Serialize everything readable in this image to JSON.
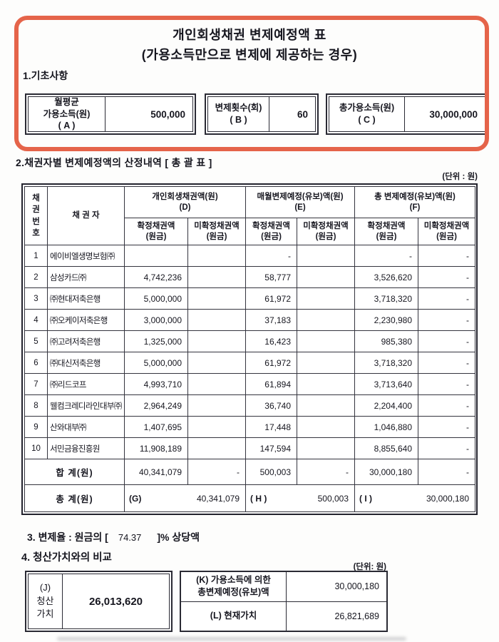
{
  "accent_color": "#e5644a",
  "title": "개인회생채권 변제예정액 표\n(가용소득만으로 변제에 제공하는 경우)",
  "section1": {
    "heading": "1.기초사항",
    "boxes": [
      {
        "label": "월평균\n가용소득(원)\n( A )",
        "value": "500,000"
      },
      {
        "label": "변제횟수(회)\n( B )",
        "value": "60"
      },
      {
        "label": "총가용소득(원)\n( C )",
        "value": "30,000,000"
      }
    ]
  },
  "section2": {
    "heading": "2.채권자별 변제예정액의 산정내역 [ 총 괄 표 ]",
    "unit_note": "(단위 : 원)",
    "table": {
      "corner_header": "채\n권\n번\n호",
      "creditor_header": "채 권 자",
      "group_headers": [
        "개인회생채권액(원)\n(D)",
        "매월변제예정(유보)액(원)\n(E)",
        "총 변제예정(유보)액(원)\n(F)"
      ],
      "sub_headers": [
        "확정채권액\n(원금)",
        "미확정채권액\n(원금)"
      ],
      "rows": [
        {
          "no": "1",
          "creditor": "에이비엘생명보험㈜",
          "cells": [
            "",
            "",
            "-",
            "",
            "-",
            "-"
          ]
        },
        {
          "no": "2",
          "creditor": "삼성카드㈜",
          "cells": [
            "4,742,236",
            "",
            "58,777",
            "",
            "3,526,620",
            "-"
          ]
        },
        {
          "no": "3",
          "creditor": "㈜현대저축은행",
          "cells": [
            "5,000,000",
            "",
            "61,972",
            "",
            "3,718,320",
            "-"
          ]
        },
        {
          "no": "4",
          "creditor": "㈜오케이저축은행",
          "cells": [
            "3,000,000",
            "",
            "37,183",
            "",
            "2,230,980",
            "-"
          ]
        },
        {
          "no": "5",
          "creditor": "㈜고려저축은행",
          "cells": [
            "1,325,000",
            "",
            "16,423",
            "",
            "985,380",
            "-"
          ]
        },
        {
          "no": "6",
          "creditor": "㈜대신저축은행",
          "cells": [
            "5,000,000",
            "",
            "61,972",
            "",
            "3,718,320",
            "-"
          ]
        },
        {
          "no": "7",
          "creditor": "㈜리드코프",
          "cells": [
            "4,993,710",
            "",
            "61,894",
            "",
            "3,713,640",
            "-"
          ]
        },
        {
          "no": "8",
          "creditor": "웰컴크레디라인대부㈜",
          "cells": [
            "2,964,249",
            "",
            "36,740",
            "",
            "2,204,400",
            "-"
          ]
        },
        {
          "no": "9",
          "creditor": "산와대부㈜",
          "cells": [
            "1,407,695",
            "",
            "17,448",
            "",
            "1,046,880",
            "-"
          ]
        },
        {
          "no": "10",
          "creditor": "서민금융진흥원",
          "cells": [
            "11,908,189",
            "",
            "147,594",
            "",
            "8,855,640",
            "-"
          ]
        }
      ],
      "subtotal": {
        "label": "합 계(원)",
        "cells": [
          "40,341,079",
          "-",
          "500,003",
          "-",
          "30,000,180",
          "-"
        ]
      },
      "total": {
        "label": "총 계(원)",
        "cells": [
          {
            "tag": "(G)",
            "value": "40,341,079"
          },
          {
            "tag": "( H )",
            "value": "500,003"
          },
          {
            "tag": "( I )",
            "value": "30,000,180"
          }
        ]
      }
    }
  },
  "section3": {
    "prefix": "3. 변제율 : 원금의 [",
    "rate": "74.37",
    "suffix": "]% 상당액"
  },
  "section4": {
    "heading": "4. 청산가치와의 비교",
    "unit_note": "(단위: 원)",
    "j_table": {
      "label": "(J)\n청산\n가치",
      "value": "26,013,620"
    },
    "kl_rows": [
      {
        "label": "(K) 가용소득에 의한\n총변제예정(유보)액",
        "value": "30,000,180"
      },
      {
        "label": "(L) 현재가치",
        "value": "26,821,689"
      }
    ]
  }
}
